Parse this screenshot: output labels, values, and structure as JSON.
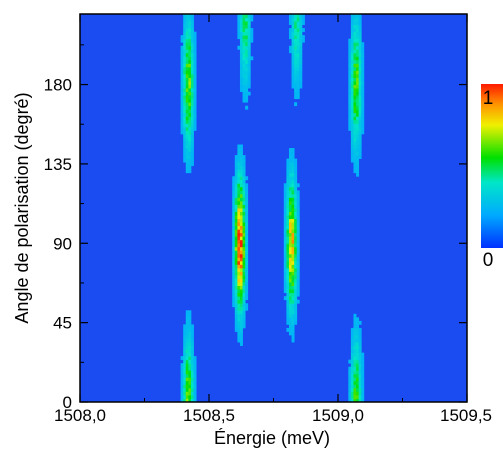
{
  "chart_data": {
    "type": "heatmap",
    "title": "",
    "xlabel": "Énergie (meV)",
    "ylabel": "Angle de polarisation (degré)",
    "xlim": [
      1508.0,
      1509.5
    ],
    "ylim": [
      0,
      220
    ],
    "x_ticks": [
      1508.0,
      1508.5,
      1509.0,
      1509.5
    ],
    "x_tick_labels": [
      "1508,0",
      "1508,5",
      "1509,0",
      "1509,5"
    ],
    "y_ticks": [
      0,
      45,
      90,
      135,
      180
    ],
    "y_tick_labels": [
      "0",
      "45",
      "90",
      "135",
      "180"
    ],
    "colorbar": {
      "min_label": "0",
      "max_label": "1",
      "min": 0,
      "max": 1
    },
    "background_intensity": 0.2,
    "lines": [
      {
        "energy_meV": 1508.42,
        "angle_peaks_deg": [
          0,
          180
        ],
        "peak_intensity": 0.55
      },
      {
        "energy_meV": 1508.62,
        "angle_peaks_deg": [
          90
        ],
        "peak_intensity": 1.0
      },
      {
        "energy_meV": 1508.82,
        "angle_peaks_deg": [
          90
        ],
        "peak_intensity": 0.75
      },
      {
        "energy_meV": 1509.07,
        "angle_peaks_deg": [
          0,
          180
        ],
        "peak_intensity": 0.5
      },
      {
        "energy_meV": 1508.64,
        "angle_peaks_deg": [
          215
        ],
        "peak_intensity": 0.35
      },
      {
        "energy_meV": 1508.84,
        "angle_peaks_deg": [
          215
        ],
        "peak_intensity": 0.3
      }
    ]
  }
}
